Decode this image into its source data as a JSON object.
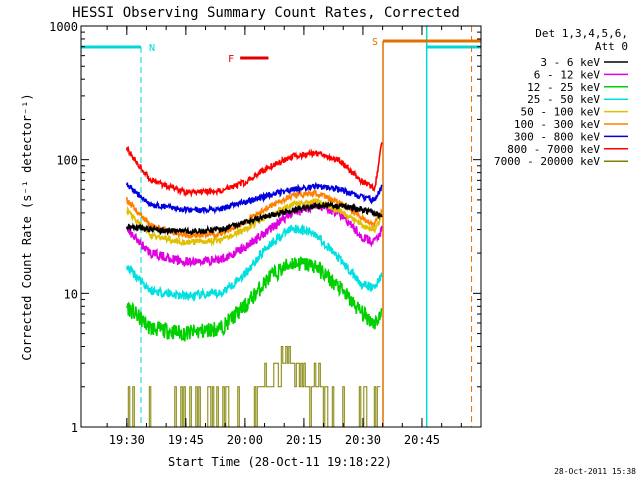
{
  "chart_data": {
    "type": "line",
    "title": "HESSI Observing Summary Count Rates, Corrected",
    "xlabel": "Start Time (28-Oct-11 19:18:22)",
    "ylabel": "Corrected Count Rate (s⁻¹ detector⁻¹)",
    "y_scale": "log",
    "ylim": [
      1,
      1000
    ],
    "y_ticks": [
      {
        "value": 1,
        "label": "1"
      },
      {
        "value": 10,
        "label": "10"
      },
      {
        "value": 100,
        "label": "100"
      },
      {
        "value": 1000,
        "label": "1000"
      }
    ],
    "x_ticks": [
      "19:30",
      "19:45",
      "20:00",
      "20:15",
      "20:30",
      "20:45"
    ],
    "legend": {
      "header": [
        "Det 1,3,4,5,6,",
        "Att 0"
      ],
      "placement": "right"
    },
    "series": [
      {
        "name": "3 - 6 keV",
        "color": "#000000",
        "values": [
          [
            19.5,
            32
          ],
          [
            19.6,
            30
          ],
          [
            19.75,
            29
          ],
          [
            19.9,
            30
          ],
          [
            20.0,
            34
          ],
          [
            20.1,
            38
          ],
          [
            20.15,
            40
          ],
          [
            20.25,
            44
          ],
          [
            20.35,
            46
          ],
          [
            20.45,
            44
          ],
          [
            20.5,
            42
          ],
          [
            20.55,
            40
          ],
          [
            20.58,
            38
          ]
        ]
      },
      {
        "name": "6 - 12 keV",
        "color": "#e000e0",
        "values": [
          [
            19.5,
            30
          ],
          [
            19.6,
            20
          ],
          [
            19.75,
            17
          ],
          [
            19.9,
            18
          ],
          [
            20.0,
            22
          ],
          [
            20.1,
            30
          ],
          [
            20.2,
            40
          ],
          [
            20.3,
            46
          ],
          [
            20.4,
            40
          ],
          [
            20.5,
            26
          ],
          [
            20.55,
            24
          ],
          [
            20.58,
            30
          ]
        ]
      },
      {
        "name": "12 - 25 keV",
        "color": "#00d000",
        "values": [
          [
            19.5,
            8
          ],
          [
            19.6,
            5.5
          ],
          [
            19.75,
            5
          ],
          [
            19.9,
            5.5
          ],
          [
            20.0,
            8
          ],
          [
            20.1,
            13
          ],
          [
            20.2,
            17
          ],
          [
            20.3,
            16
          ],
          [
            20.4,
            11
          ],
          [
            20.5,
            7
          ],
          [
            20.55,
            6
          ],
          [
            20.58,
            7
          ]
        ]
      },
      {
        "name": "25 - 50 keV",
        "color": "#00e0e0",
        "values": [
          [
            19.5,
            16
          ],
          [
            19.6,
            10.5
          ],
          [
            19.75,
            9.5
          ],
          [
            19.9,
            10
          ],
          [
            20.0,
            14
          ],
          [
            20.1,
            23
          ],
          [
            20.2,
            31
          ],
          [
            20.3,
            28
          ],
          [
            20.4,
            18
          ],
          [
            20.5,
            11.5
          ],
          [
            20.55,
            11
          ],
          [
            20.58,
            14
          ]
        ]
      },
      {
        "name": "50 - 100 keV",
        "color": "#e0c000",
        "values": [
          [
            19.5,
            42
          ],
          [
            19.6,
            27
          ],
          [
            19.75,
            24
          ],
          [
            19.9,
            25
          ],
          [
            20.0,
            30
          ],
          [
            20.1,
            38
          ],
          [
            20.2,
            46
          ],
          [
            20.3,
            49
          ],
          [
            20.4,
            42
          ],
          [
            20.5,
            32
          ],
          [
            20.55,
            30
          ],
          [
            20.58,
            38
          ]
        ]
      },
      {
        "name": "100 - 300 keV",
        "color": "#ff8000",
        "values": [
          [
            19.5,
            50
          ],
          [
            19.6,
            32
          ],
          [
            19.75,
            27
          ],
          [
            19.9,
            28
          ],
          [
            20.0,
            34
          ],
          [
            20.1,
            44
          ],
          [
            20.2,
            54
          ],
          [
            20.3,
            56
          ],
          [
            20.4,
            48
          ],
          [
            20.5,
            36
          ],
          [
            20.55,
            33
          ],
          [
            20.58,
            42
          ]
        ]
      },
      {
        "name": "300 - 800 keV",
        "color": "#0000e0",
        "values": [
          [
            19.5,
            65
          ],
          [
            19.6,
            46
          ],
          [
            19.75,
            42
          ],
          [
            19.9,
            43
          ],
          [
            20.0,
            48
          ],
          [
            20.1,
            54
          ],
          [
            20.2,
            60
          ],
          [
            20.3,
            63
          ],
          [
            20.4,
            60
          ],
          [
            20.5,
            52
          ],
          [
            20.55,
            50
          ],
          [
            20.58,
            62
          ]
        ]
      },
      {
        "name": "800 - 7000 keV",
        "color": "#ff0000",
        "values": [
          [
            19.5,
            120
          ],
          [
            19.6,
            70
          ],
          [
            19.75,
            57
          ],
          [
            19.9,
            58
          ],
          [
            20.0,
            68
          ],
          [
            20.1,
            88
          ],
          [
            20.2,
            106
          ],
          [
            20.3,
            112
          ],
          [
            20.4,
            98
          ],
          [
            20.5,
            68
          ],
          [
            20.55,
            60
          ],
          [
            20.58,
            135
          ]
        ]
      },
      {
        "name": "7000 - 20000 keV",
        "color": "#808000",
        "values": [
          [
            19.5,
            2
          ],
          [
            19.55,
            1
          ],
          [
            19.9,
            1
          ],
          [
            20.0,
            1
          ],
          [
            20.07,
            1.7
          ],
          [
            20.1,
            2.3
          ],
          [
            20.15,
            3
          ],
          [
            20.2,
            3
          ],
          [
            20.28,
            2.2
          ],
          [
            20.35,
            1.5
          ],
          [
            20.42,
            1
          ],
          [
            20.55,
            1
          ],
          [
            20.57,
            2
          ]
        ]
      }
    ],
    "annotations": [
      {
        "label": "N",
        "color": "#00d8d8"
      },
      {
        "label": "F",
        "color": "#e00000"
      },
      {
        "label": "S",
        "color": "#e07000"
      }
    ],
    "timestamp": "28-Oct-2011 15:38"
  }
}
